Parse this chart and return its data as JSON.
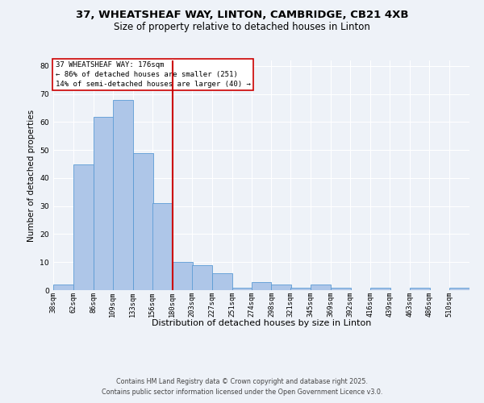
{
  "title1": "37, WHEATSHEAF WAY, LINTON, CAMBRIDGE, CB21 4XB",
  "title2": "Size of property relative to detached houses in Linton",
  "xlabel": "Distribution of detached houses by size in Linton",
  "ylabel": "Number of detached properties",
  "bar_edges": [
    38,
    62,
    86,
    109,
    133,
    156,
    180,
    203,
    227,
    251,
    274,
    298,
    321,
    345,
    369,
    392,
    416,
    439,
    463,
    486,
    510
  ],
  "bar_heights": [
    2,
    45,
    62,
    68,
    49,
    31,
    10,
    9,
    6,
    1,
    3,
    2,
    1,
    2,
    1,
    0,
    1,
    0,
    1,
    0,
    1
  ],
  "bar_color": "#aec6e8",
  "bar_edge_color": "#5b9bd5",
  "vline_x": 180,
  "vline_color": "#cc0000",
  "bg_color": "#eef2f8",
  "grid_color": "#ffffff",
  "annotation_box_text": "37 WHEATSHEAF WAY: 176sqm\n← 86% of detached houses are smaller (251)\n14% of semi-detached houses are larger (40) →",
  "annotation_box_color": "#cc0000",
  "annotation_box_bg": "#ffffff",
  "footer1": "Contains HM Land Registry data © Crown copyright and database right 2025.",
  "footer2": "Contains public sector information licensed under the Open Government Licence v3.0.",
  "ylim": [
    0,
    82
  ],
  "tick_labels": [
    "38sqm",
    "62sqm",
    "86sqm",
    "109sqm",
    "133sqm",
    "156sqm",
    "180sqm",
    "203sqm",
    "227sqm",
    "251sqm",
    "274sqm",
    "298sqm",
    "321sqm",
    "345sqm",
    "369sqm",
    "392sqm",
    "416sqm",
    "439sqm",
    "463sqm",
    "486sqm",
    "510sqm"
  ],
  "title1_fontsize": 9.5,
  "title2_fontsize": 8.5,
  "xlabel_fontsize": 8,
  "ylabel_fontsize": 7.5,
  "tick_fontsize": 6.2,
  "footer_fontsize": 5.8,
  "ann_fontsize": 6.5
}
